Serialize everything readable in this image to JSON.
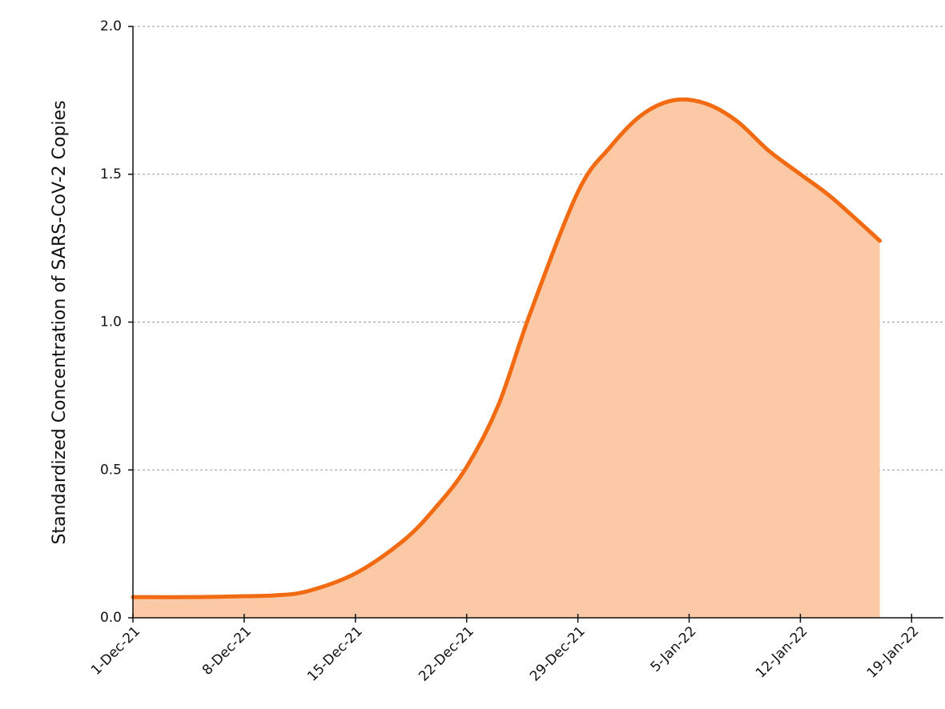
{
  "chart_data": {
    "type": "area",
    "ylabel": "Standardized Concentration of SARS-CoV-2 Copies",
    "x": [
      "2021-12-01",
      "2021-12-05",
      "2021-12-08",
      "2021-12-10",
      "2021-12-12",
      "2021-12-15",
      "2021-12-18",
      "2021-12-20",
      "2021-12-22",
      "2021-12-24",
      "2021-12-26",
      "2021-12-29",
      "2021-12-31",
      "2022-01-02",
      "2022-01-04",
      "2022-01-06",
      "2022-01-08",
      "2022-01-10",
      "2022-01-12",
      "2022-01-14",
      "2022-01-17"
    ],
    "series": [
      {
        "color": "#f26b12",
        "fill": "#fbc9a5",
        "values": [
          0.07,
          0.07,
          0.073,
          0.076,
          0.09,
          0.15,
          0.26,
          0.37,
          0.51,
          0.72,
          1.03,
          1.44,
          1.59,
          1.7,
          1.75,
          1.74,
          1.68,
          1.58,
          1.5,
          1.42,
          1.275
        ]
      }
    ],
    "xlim": [
      "2021-12-01",
      "2022-01-21"
    ],
    "xticks": [
      {
        "value": "2021-12-01",
        "label": "1-Dec-21"
      },
      {
        "value": "2021-12-08",
        "label": "8-Dec-21"
      },
      {
        "value": "2021-12-15",
        "label": "15-Dec-21"
      },
      {
        "value": "2021-12-22",
        "label": "22-Dec-21"
      },
      {
        "value": "2021-12-29",
        "label": "29-Dec-21"
      },
      {
        "value": "2022-01-05",
        "label": "5-Jan-22"
      },
      {
        "value": "2022-01-12",
        "label": "12-Jan-22"
      },
      {
        "value": "2022-01-19",
        "label": "19-Jan-22"
      }
    ],
    "ylim": [
      0,
      2
    ],
    "yticks": [
      {
        "value": 0,
        "label": "0.0"
      },
      0.5,
      {
        "value": 1,
        "label": "1.0"
      },
      1.5,
      {
        "value": 2,
        "label": "2.0"
      }
    ],
    "grid": true
  }
}
